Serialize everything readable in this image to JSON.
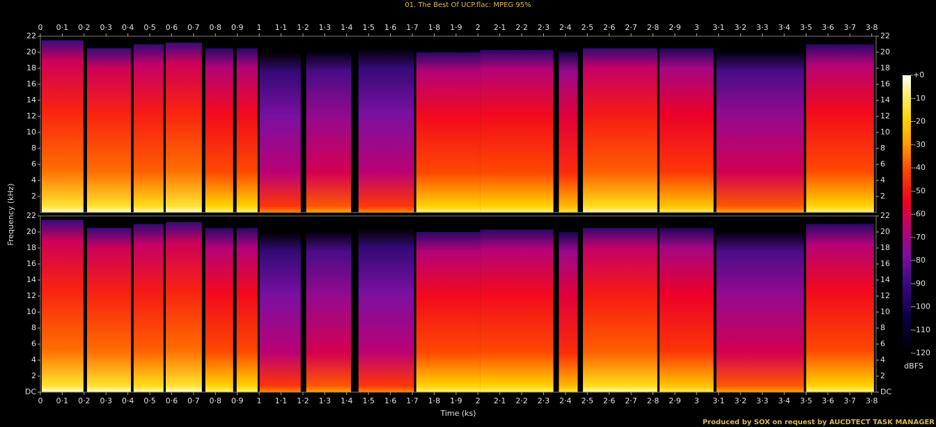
{
  "chart_data": {
    "type": "spectrogram",
    "title": "01. The Best Of UCP.flac: MPEG 95%",
    "xlabel": "Time (ks)",
    "ylabel": "Frequency (kHz)",
    "footer": "Produced by SOX on request by AUCDTECT TASK MANAGER",
    "xlim": [
      0,
      3.82
    ],
    "xticks": [
      0,
      {
        "value": 0.1,
        "label": "0·1"
      },
      {
        "value": 0.2,
        "label": "0·2"
      },
      {
        "value": 0.3,
        "label": "0·3"
      },
      {
        "value": 0.4,
        "label": "0·4"
      },
      {
        "value": 0.5,
        "label": "0·5"
      },
      {
        "value": 0.6,
        "label": "0·6"
      },
      {
        "value": 0.7,
        "label": "0·7"
      },
      {
        "value": 0.8,
        "label": "0·8"
      },
      {
        "value": 0.9,
        "label": "0·9"
      },
      1,
      {
        "value": 1.1,
        "label": "1·1"
      },
      {
        "value": 1.2,
        "label": "1·2"
      },
      {
        "value": 1.3,
        "label": "1·3"
      },
      {
        "value": 1.4,
        "label": "1·4"
      },
      {
        "value": 1.5,
        "label": "1·5"
      },
      {
        "value": 1.6,
        "label": "1·6"
      },
      {
        "value": 1.7,
        "label": "1·7"
      },
      {
        "value": 1.8,
        "label": "1·8"
      },
      {
        "value": 1.9,
        "label": "1·9"
      },
      2,
      {
        "value": 2.1,
        "label": "2·1"
      },
      {
        "value": 2.2,
        "label": "2·2"
      },
      {
        "value": 2.3,
        "label": "2·3"
      },
      {
        "value": 2.4,
        "label": "2·4"
      },
      {
        "value": 2.5,
        "label": "2·5"
      },
      {
        "value": 2.6,
        "label": "2·6"
      },
      {
        "value": 2.7,
        "label": "2·7"
      },
      {
        "value": 2.8,
        "label": "2·8"
      },
      {
        "value": 2.9,
        "label": "2·9"
      },
      3,
      {
        "value": 3.1,
        "label": "3·1"
      },
      {
        "value": 3.2,
        "label": "3·2"
      },
      {
        "value": 3.3,
        "label": "3·3"
      },
      {
        "value": 3.4,
        "label": "3·4"
      },
      {
        "value": 3.5,
        "label": "3·5"
      },
      {
        "value": 3.6,
        "label": "3·6"
      },
      {
        "value": 3.7,
        "label": "3·7"
      },
      {
        "value": 3.8,
        "label": "3·8"
      }
    ],
    "ylim": [
      0,
      22
    ],
    "panels": [
      {
        "yticks": [
          2,
          4,
          6,
          8,
          10,
          12,
          14,
          16,
          18,
          20,
          22
        ]
      },
      {
        "yticks": [
          {
            "value": 0,
            "label": "DC"
          },
          2,
          4,
          6,
          8,
          10,
          12,
          14,
          16,
          18,
          20,
          22
        ]
      }
    ],
    "segments": [
      {
        "start": 0.006,
        "end": 0.197,
        "cutoff": 21.5,
        "level": -50
      },
      {
        "start": 0.213,
        "end": 0.414,
        "cutoff": 20.5,
        "level": -50
      },
      {
        "start": 0.426,
        "end": 0.563,
        "cutoff": 21,
        "level": -52
      },
      {
        "start": 0.573,
        "end": 0.738,
        "cutoff": 21.2,
        "level": -50
      },
      {
        "start": 0.754,
        "end": 0.881,
        "cutoff": 20.5,
        "level": -55
      },
      {
        "start": 0.897,
        "end": 0.993,
        "cutoff": 20.5,
        "level": -55
      },
      {
        "start": 1.002,
        "end": 1.19,
        "cutoff": 20,
        "level": -80
      },
      {
        "start": 1.215,
        "end": 1.42,
        "cutoff": 20,
        "level": -75
      },
      {
        "start": 1.454,
        "end": 1.708,
        "cutoff": 20.5,
        "level": -80
      },
      {
        "start": 1.718,
        "end": 2.01,
        "cutoff": 20,
        "level": -55
      },
      {
        "start": 2.01,
        "end": 2.345,
        "cutoff": 20.3,
        "level": -55
      },
      {
        "start": 2.37,
        "end": 2.456,
        "cutoff": 20,
        "level": -60
      },
      {
        "start": 2.48,
        "end": 2.82,
        "cutoff": 20.5,
        "level": -52
      },
      {
        "start": 2.83,
        "end": 3.077,
        "cutoff": 20.5,
        "level": -58
      },
      {
        "start": 3.09,
        "end": 3.49,
        "cutoff": 20,
        "level": -75
      },
      {
        "start": 3.5,
        "end": 3.81,
        "cutoff": 21,
        "level": -55
      }
    ],
    "colorscale": [
      {
        "value": -120,
        "color": "#000000"
      },
      {
        "value": -105,
        "color": "#0a0040"
      },
      {
        "value": -90,
        "color": "#3a0a80"
      },
      {
        "value": -78,
        "color": "#7a10a0"
      },
      {
        "value": -65,
        "color": "#c00070"
      },
      {
        "value": -55,
        "color": "#f00020"
      },
      {
        "value": -42,
        "color": "#ff4000"
      },
      {
        "value": -30,
        "color": "#ff9a00"
      },
      {
        "value": -18,
        "color": "#ffd800"
      },
      {
        "value": -8,
        "color": "#fff070"
      },
      {
        "value": 0,
        "color": "#ffffff"
      }
    ],
    "colorbar": {
      "label": "dBFS",
      "lim": [
        -120,
        0
      ],
      "ticks": [
        {
          "value": 0,
          "label": "+0"
        },
        -10,
        -20,
        -30,
        -40,
        -50,
        -60,
        -70,
        -80,
        -90,
        -100,
        -110,
        -120
      ]
    }
  }
}
